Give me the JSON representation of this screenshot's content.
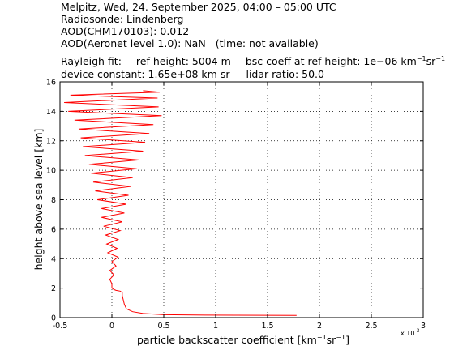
{
  "header": {
    "line1": "Melpitz, Wed, 24. September 2025, 04:00 – 05:00 UTC",
    "line2": "Radiosonde: Lindenberg",
    "line3": "AOD(CHM170103): 0.012",
    "line4a": "AOD(Aeronet level 1.0): NaN",
    "line4b": "(time: not available)",
    "rayleigh_label": "Rayleigh fit:",
    "ref_height": "ref height: 5004 m",
    "bsc_coeff_prefix": "bsc coeff at ref height: 1e−06 km",
    "bsc_coeff_exp1": "−1",
    "bsc_coeff_mid": "sr",
    "bsc_coeff_exp2": "−1",
    "device_constant": "device constant: 1.65e+08 km sr",
    "lidar_ratio": "lidar ratio: 50.0"
  },
  "chart_data": {
    "type": "line",
    "xlabel_prefix": "particle backscatter coefficient [km",
    "xlabel_exp1": "−1",
    "xlabel_mid": "sr",
    "xlabel_exp2": "−1",
    "xlabel_suffix": "]",
    "ylabel": "height above sea level [km]",
    "x_multiplier": "x 10",
    "x_multiplier_exp": "-3",
    "xlim": [
      -0.5,
      3
    ],
    "ylim": [
      0,
      16
    ],
    "xticks": [
      "-0.5",
      "0",
      "0.5",
      "1",
      "1.5",
      "2",
      "2.5",
      "3"
    ],
    "yticks": [
      "0",
      "2",
      "4",
      "6",
      "8",
      "10",
      "12",
      "14",
      "16"
    ],
    "grid": true,
    "series": [
      {
        "color": "#ff0000",
        "points": [
          [
            1.78,
            0.15
          ],
          [
            0.9,
            0.17
          ],
          [
            0.5,
            0.2
          ],
          [
            0.3,
            0.28
          ],
          [
            0.2,
            0.4
          ],
          [
            0.14,
            0.6
          ],
          [
            0.12,
            0.9
          ],
          [
            0.11,
            1.2
          ],
          [
            0.1,
            1.5
          ],
          [
            0.1,
            1.7
          ],
          [
            0.08,
            1.8
          ],
          [
            0.04,
            1.85
          ],
          [
            0.02,
            1.9
          ],
          [
            0.0,
            2.0
          ],
          [
            0.0,
            2.3
          ],
          [
            -0.02,
            2.6
          ],
          [
            0.02,
            2.9
          ],
          [
            -0.02,
            3.2
          ],
          [
            0.04,
            3.5
          ],
          [
            0.0,
            3.8
          ],
          [
            0.06,
            4.1
          ],
          [
            -0.04,
            4.4
          ],
          [
            0.05,
            4.7
          ],
          [
            -0.05,
            5.0
          ],
          [
            0.06,
            5.3
          ],
          [
            -0.06,
            5.6
          ],
          [
            0.08,
            5.9
          ],
          [
            -0.08,
            6.2
          ],
          [
            0.1,
            6.5
          ],
          [
            -0.1,
            6.8
          ],
          [
            0.12,
            7.1
          ],
          [
            -0.1,
            7.4
          ],
          [
            0.14,
            7.7
          ],
          [
            -0.14,
            8.0
          ],
          [
            0.16,
            8.3
          ],
          [
            -0.16,
            8.6
          ],
          [
            0.18,
            8.9
          ],
          [
            -0.18,
            9.2
          ],
          [
            0.2,
            9.5
          ],
          [
            -0.2,
            9.8
          ],
          [
            0.24,
            10.1
          ],
          [
            -0.22,
            10.4
          ],
          [
            0.26,
            10.7
          ],
          [
            -0.26,
            11.0
          ],
          [
            0.3,
            11.3
          ],
          [
            -0.28,
            11.6
          ],
          [
            0.32,
            11.9
          ],
          [
            -0.3,
            12.2
          ],
          [
            0.36,
            12.5
          ],
          [
            -0.32,
            12.8
          ],
          [
            0.4,
            13.1
          ],
          [
            -0.36,
            13.4
          ],
          [
            0.48,
            13.7
          ],
          [
            -0.42,
            14.0
          ],
          [
            0.45,
            14.3
          ],
          [
            -0.46,
            14.6
          ],
          [
            0.44,
            14.9
          ],
          [
            -0.4,
            15.1
          ],
          [
            0.46,
            15.3
          ],
          [
            0.3,
            15.4
          ]
        ]
      }
    ]
  }
}
